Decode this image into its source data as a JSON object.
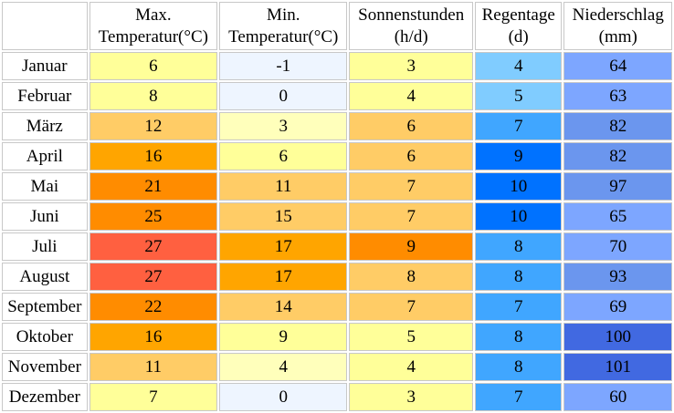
{
  "table": {
    "headers": [
      "",
      "Max.\nTemperatur(°C)",
      "Min.\nTemperatur(°C)",
      "Sonnenstunden\n(h/d)",
      "Regentage\n(d)",
      "Niederschlag\n(mm)"
    ],
    "rows": [
      {
        "month": "Januar",
        "values": [
          "6",
          "-1",
          "3",
          "4",
          "64"
        ],
        "colors": [
          "#ffff99",
          "#eef5ff",
          "#ffff99",
          "#80ccff",
          "#7da6ff"
        ]
      },
      {
        "month": "Februar",
        "values": [
          "8",
          "0",
          "4",
          "5",
          "63"
        ],
        "colors": [
          "#ffff99",
          "#eef5ff",
          "#ffff99",
          "#80ccff",
          "#7da6ff"
        ]
      },
      {
        "month": "März",
        "values": [
          "12",
          "3",
          "6",
          "7",
          "82"
        ],
        "colors": [
          "#ffcc66",
          "#ffffbb",
          "#ffcc66",
          "#40a6ff",
          "#6b96ee"
        ]
      },
      {
        "month": "April",
        "values": [
          "16",
          "6",
          "6",
          "9",
          "82"
        ],
        "colors": [
          "#ffa500",
          "#ffff99",
          "#ffcc66",
          "#0072ff",
          "#6b96ee"
        ]
      },
      {
        "month": "Mai",
        "values": [
          "21",
          "11",
          "7",
          "10",
          "97"
        ],
        "colors": [
          "#ff8c00",
          "#ffcc66",
          "#ffcc66",
          "#0072ff",
          "#6b96ee"
        ]
      },
      {
        "month": "Juni",
        "values": [
          "25",
          "15",
          "7",
          "10",
          "65"
        ],
        "colors": [
          "#ff8c00",
          "#ffcc66",
          "#ffcc66",
          "#0072ff",
          "#7da6ff"
        ]
      },
      {
        "month": "Juli",
        "values": [
          "27",
          "17",
          "9",
          "8",
          "70"
        ],
        "colors": [
          "#ff6040",
          "#ffa500",
          "#ff8c00",
          "#40a6ff",
          "#7da6ff"
        ]
      },
      {
        "month": "August",
        "values": [
          "27",
          "17",
          "8",
          "8",
          "93"
        ],
        "colors": [
          "#ff6040",
          "#ffa500",
          "#ffcc66",
          "#40a6ff",
          "#6b96ee"
        ]
      },
      {
        "month": "September",
        "values": [
          "22",
          "14",
          "7",
          "7",
          "69"
        ],
        "colors": [
          "#ff8c00",
          "#ffcc66",
          "#ffcc66",
          "#40a6ff",
          "#7da6ff"
        ]
      },
      {
        "month": "Oktober",
        "values": [
          "16",
          "9",
          "5",
          "8",
          "100"
        ],
        "colors": [
          "#ffa500",
          "#ffff99",
          "#ffff99",
          "#40a6ff",
          "#4169e1"
        ]
      },
      {
        "month": "November",
        "values": [
          "11",
          "4",
          "4",
          "8",
          "101"
        ],
        "colors": [
          "#ffcc66",
          "#ffffbb",
          "#ffff99",
          "#40a6ff",
          "#4169e1"
        ]
      },
      {
        "month": "Dezember",
        "values": [
          "7",
          "0",
          "3",
          "7",
          "60"
        ],
        "colors": [
          "#ffff99",
          "#eef5ff",
          "#ffff99",
          "#40a6ff",
          "#7da6ff"
        ]
      }
    ]
  }
}
